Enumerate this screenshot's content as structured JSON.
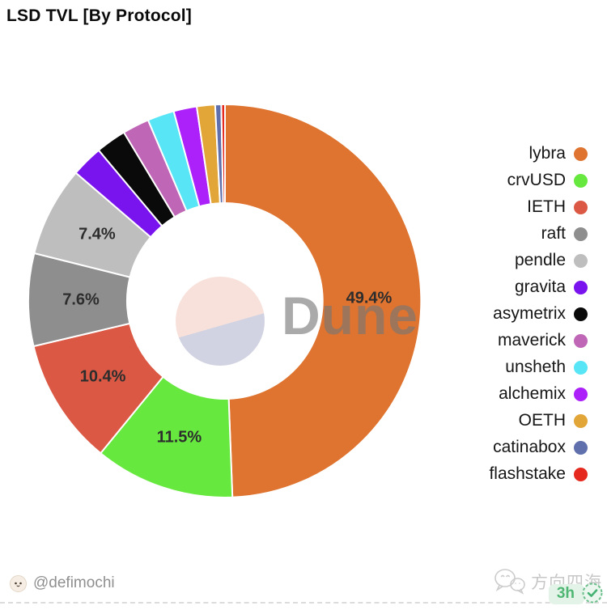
{
  "header": {
    "title": "LSD TVL [By Protocol]"
  },
  "watermark": {
    "text": "Dune",
    "color": "#767676"
  },
  "chart_data": {
    "type": "pie",
    "subtype": "donut",
    "title": "LSD TVL [By Protocol]",
    "direction": "clockwise",
    "start_angle_deg": 0,
    "legend_position": "right",
    "label_threshold_pct": 5,
    "slice_border_color": "#ffffff",
    "series": [
      {
        "name": "lybra",
        "value": 49.4,
        "color": "#DE7430",
        "label": "49.4%"
      },
      {
        "name": "crvUSD",
        "value": 11.5,
        "color": "#67E83E",
        "label": "11.5%"
      },
      {
        "name": "IETH",
        "value": 10.4,
        "color": "#DB5944",
        "label": "10.4%"
      },
      {
        "name": "raft",
        "value": 7.6,
        "color": "#8E8E8E",
        "label": "7.6%"
      },
      {
        "name": "pendle",
        "value": 7.4,
        "color": "#BEBEBE",
        "label": "7.4%"
      },
      {
        "name": "gravita",
        "value": 2.6,
        "color": "#7A14EE"
      },
      {
        "name": "asymetrix",
        "value": 2.5,
        "color": "#0A0A0A"
      },
      {
        "name": "maverick",
        "value": 2.2,
        "color": "#BF67B6"
      },
      {
        "name": "unsheth",
        "value": 2.2,
        "color": "#58E5F5"
      },
      {
        "name": "alchemix",
        "value": 1.9,
        "color": "#AC20F9"
      },
      {
        "name": "OETH",
        "value": 1.5,
        "color": "#E2A538"
      },
      {
        "name": "catinabox",
        "value": 0.5,
        "color": "#6070AD"
      },
      {
        "name": "flashstake",
        "value": 0.3,
        "color": "#E5291E"
      }
    ]
  },
  "footer": {
    "handle": "@defimochi",
    "channel_name": "方向四海",
    "time_badge": "3h"
  }
}
